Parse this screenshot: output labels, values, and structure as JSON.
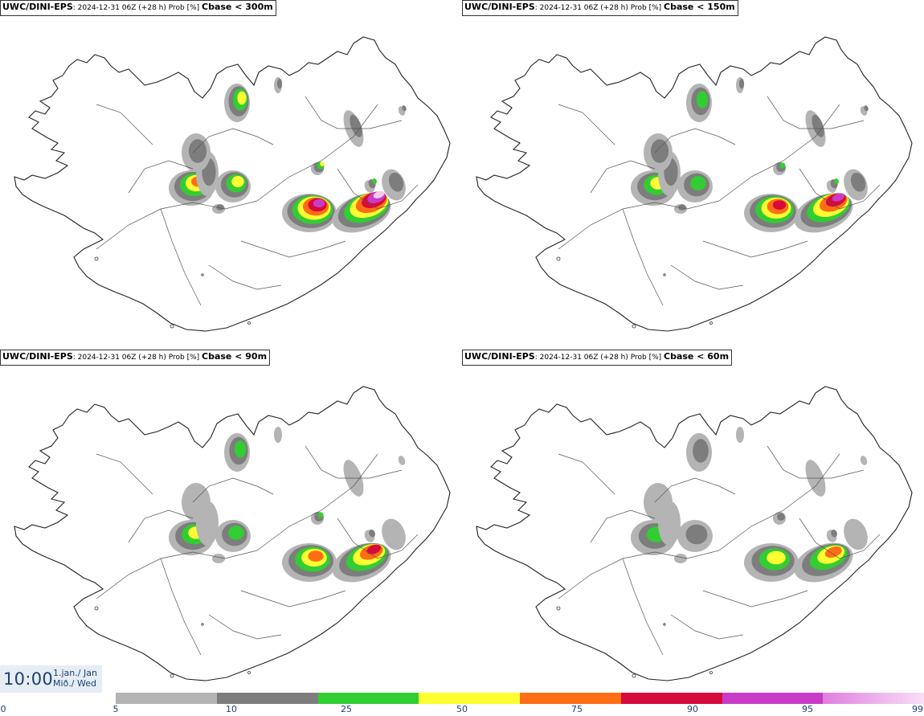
{
  "panels": [
    {
      "model": "UWC/DINI-EPS",
      "meta": ": 2024-12-31 06Z (+28 h) Prob [%] ",
      "label": "Cbase < 300m"
    },
    {
      "model": "UWC/DINI-EPS",
      "meta": ": 2024-12-31 06Z (+28 h) Prob [%] ",
      "label": "Cbase < 150m"
    },
    {
      "model": "UWC/DINI-EPS",
      "meta": ": 2024-12-31 06Z (+28 h) Prob [%] ",
      "label": "Cbase < 90m"
    },
    {
      "model": "UWC/DINI-EPS",
      "meta": ": 2024-12-31 06Z (+28 h) Prob [%] ",
      "label": "Cbase < 60m"
    }
  ],
  "valid_time": {
    "clock": "10:00",
    "date_line1": "1.jan./ Jan",
    "date_line2": "Mið./ Wed"
  },
  "legend": {
    "ticks": [
      "0",
      "5",
      "10",
      "25",
      "50",
      "75",
      "90",
      "95",
      "99"
    ],
    "colors": [
      "#b4b4b4",
      "#7d7d7d",
      "#32cd32",
      "#ffff32",
      "#ff6e14",
      "#d70a3c",
      "#c83cc8",
      "#f5c8f0"
    ]
  },
  "map_colors": {
    "coast": "#222222",
    "bg": "#ffffff"
  },
  "intensity_by_panel": [
    1.0,
    0.85,
    0.7,
    0.6
  ]
}
